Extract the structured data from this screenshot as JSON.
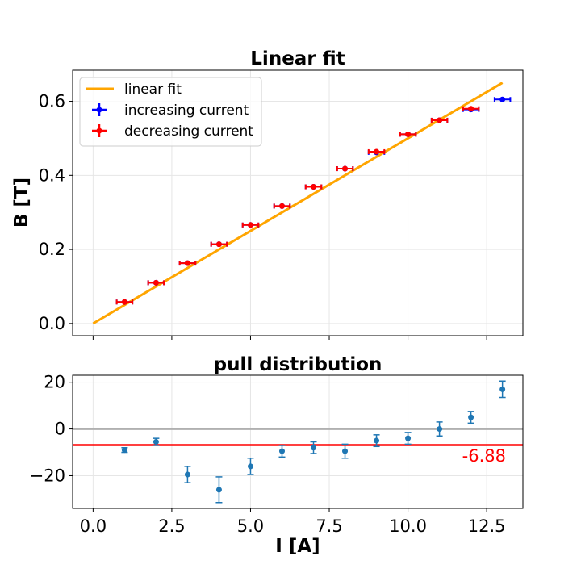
{
  "chart_data": [
    {
      "type": "scatter",
      "title": "Linear fit",
      "xlabel": "",
      "ylabel": "B [T]",
      "xlim": [
        -0.65,
        13.65
      ],
      "ylim": [
        -0.033,
        0.684
      ],
      "xticks": [
        0,
        2.5,
        5,
        7.5,
        10,
        12.5
      ],
      "yticks": [
        0.0,
        0.2,
        0.4,
        0.6
      ],
      "ytick_labels": [
        "0.0",
        "0.2",
        "0.4",
        "0.6"
      ],
      "grid": true,
      "legend_position": "top-left",
      "legend": [
        "linear fit",
        "increasing current",
        "decreasing current"
      ],
      "fit_line": {
        "name": "linear fit",
        "color": "#ffa500",
        "x": [
          0,
          13
        ],
        "y": [
          0.0,
          0.65
        ]
      },
      "series": [
        {
          "name": "increasing current",
          "color": "#0000ff",
          "x": [
            1,
            2,
            3,
            4,
            5,
            6,
            7,
            8,
            9,
            10,
            11,
            12,
            13
          ],
          "y": [
            0.058,
            0.11,
            0.163,
            0.214,
            0.266,
            0.317,
            0.369,
            0.418,
            0.462,
            0.511,
            0.549,
            0.578,
            0.605
          ],
          "xerr": 0.25,
          "yerr": 0.004
        },
        {
          "name": "decreasing current",
          "color": "#ff0000",
          "x": [
            1,
            2,
            3,
            4,
            5,
            6,
            7,
            8,
            9,
            10,
            11,
            12
          ],
          "y": [
            0.058,
            0.11,
            0.163,
            0.214,
            0.266,
            0.317,
            0.369,
            0.418,
            0.464,
            0.511,
            0.549,
            0.58
          ],
          "xerr": 0.25,
          "yerr": 0.004
        }
      ]
    },
    {
      "type": "scatter",
      "title": "pull distribution",
      "xlabel": "I [A]",
      "ylabel": "",
      "xlim": [
        -0.65,
        13.65
      ],
      "ylim": [
        -34,
        23
      ],
      "xticks": [
        0,
        2.5,
        5,
        7.5,
        10,
        12.5
      ],
      "xtick_labels": [
        "0.0",
        "2.5",
        "5.0",
        "7.5",
        "10.0",
        "12.5"
      ],
      "yticks": [
        20,
        0,
        -20
      ],
      "ytick_labels": [
        "20",
        "0",
        "−20"
      ],
      "grid": true,
      "zero_line": {
        "y": 0,
        "color": "#b0b0b0"
      },
      "mean_line": {
        "y": -6.88,
        "color": "#ff0000",
        "label": "-6.88"
      },
      "series": [
        {
          "name": "pull",
          "color": "#1f77b4",
          "x": [
            1,
            2,
            3,
            4,
            5,
            6,
            7,
            8,
            9,
            10,
            11,
            12,
            13
          ],
          "y": [
            -9,
            -5.5,
            -19.5,
            -26,
            -16,
            -9.5,
            -8,
            -9.5,
            -5,
            -4,
            0,
            5,
            17
          ],
          "yerr": [
            1,
            1.5,
            3.5,
            5.5,
            3.5,
            2.5,
            2.5,
            3,
            2.5,
            2.5,
            3,
            2.5,
            3.5
          ]
        }
      ]
    }
  ]
}
